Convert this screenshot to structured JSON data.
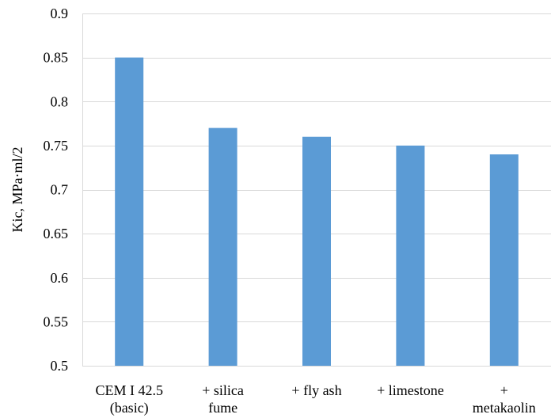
{
  "chart_data": {
    "type": "bar",
    "categories": [
      [
        "CEM I 42.5",
        "(basic)"
      ],
      [
        "+ silica",
        "fume"
      ],
      [
        "+ fly ash"
      ],
      [
        "+ limestone"
      ],
      [
        "+",
        "metakaolin"
      ]
    ],
    "values": [
      0.85,
      0.77,
      0.76,
      0.75,
      0.74
    ],
    "ylabel": "Kic, MPa·ml/2",
    "xlabel": "",
    "title": "",
    "ylim": [
      0.5,
      0.9
    ],
    "yticks": [
      "0.5",
      "0.55",
      "0.6",
      "0.65",
      "0.7",
      "0.75",
      "0.8",
      "0.85",
      "0.9"
    ],
    "grid": true,
    "legend": "none",
    "bar_color": "#5B9BD5",
    "grid_color": "#D9D9D9"
  }
}
